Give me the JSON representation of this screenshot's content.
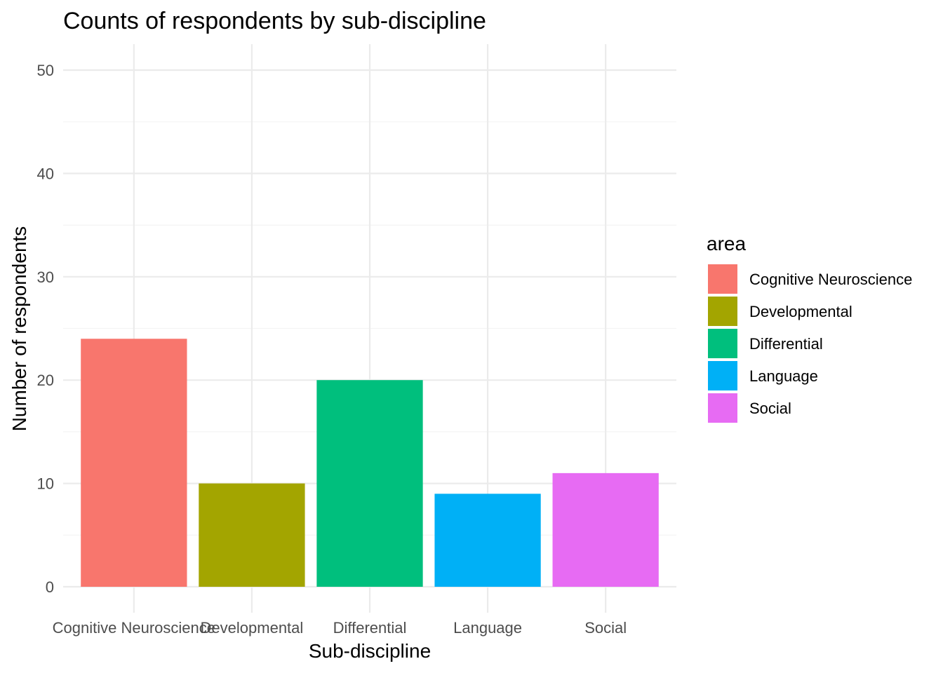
{
  "chart_data": {
    "type": "bar",
    "title": "Counts of respondents by sub-discipline",
    "xlabel": "Sub-discipline",
    "ylabel": "Number of respondents",
    "categories": [
      "Cognitive Neuroscience",
      "Developmental",
      "Differential",
      "Language",
      "Social"
    ],
    "values": [
      24,
      10,
      20,
      9,
      11
    ],
    "colors": [
      "#F8766D",
      "#A3A500",
      "#00BF7D",
      "#00B0F6",
      "#E76BF3"
    ],
    "ylim": [
      0,
      52
    ],
    "yticks": [
      0,
      10,
      20,
      30,
      40,
      50
    ],
    "grid": true,
    "legend": {
      "title": "area",
      "position": "right",
      "entries": [
        "Cognitive Neuroscience",
        "Developmental",
        "Differential",
        "Language",
        "Social"
      ]
    }
  }
}
